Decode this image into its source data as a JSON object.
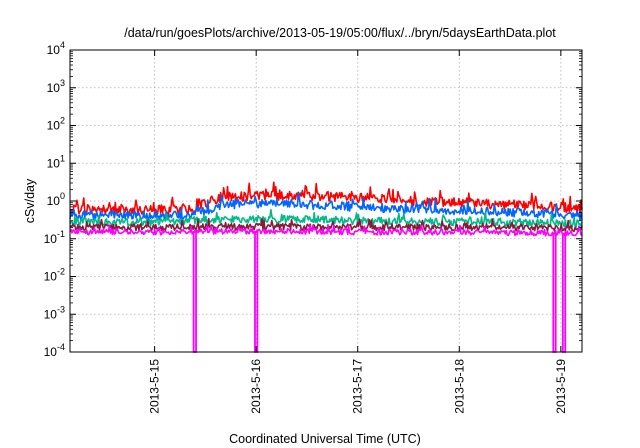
{
  "chart_data": {
    "type": "line",
    "title": "/data/run/goesPlots/archive/2013-05-19/05:00/flux/../bryn/5daysEarthData.plot",
    "xlabel": "Coordinated Universal Time (UTC)",
    "ylabel": "cSv/day",
    "yscale": "log",
    "ylim": [
      0.0001,
      10000
    ],
    "y_ticks": [
      {
        "value": 0.0001,
        "base": "10",
        "exp": "-4"
      },
      {
        "value": 0.001,
        "base": "10",
        "exp": "-3"
      },
      {
        "value": 0.01,
        "base": "10",
        "exp": "-2"
      },
      {
        "value": 0.1,
        "base": "10",
        "exp": "-1"
      },
      {
        "value": 1,
        "base": "10",
        "exp": "0"
      },
      {
        "value": 10,
        "base": "10",
        "exp": "1"
      },
      {
        "value": 100,
        "base": "10",
        "exp": "2"
      },
      {
        "value": 1000,
        "base": "10",
        "exp": "3"
      },
      {
        "value": 10000,
        "base": "10",
        "exp": "4"
      }
    ],
    "xlim": [
      "2013-05-14 04:00",
      "2013-05-19 05:00"
    ],
    "x_ticks": [
      "2013-5-15",
      "2013-5-16",
      "2013-5-17",
      "2013-5-18",
      "2013-5-19"
    ],
    "grid": true,
    "series": [
      {
        "color": "#ff0000",
        "x": [
          "2013-05-14 04:00",
          "2013-05-14 12:00",
          "2013-05-15 00:00",
          "2013-05-15 08:00",
          "2013-05-15 12:00",
          "2013-05-15 16:00",
          "2013-05-16 00:00",
          "2013-05-16 08:00",
          "2013-05-16 16:00",
          "2013-05-17 00:00",
          "2013-05-17 12:00",
          "2013-05-18 00:00",
          "2013-05-18 12:00",
          "2013-05-19 00:00",
          "2013-05-19 05:00"
        ],
        "y": [
          0.6,
          0.6,
          0.58,
          0.6,
          0.85,
          1.3,
          1.4,
          1.45,
          1.3,
          1.2,
          1.0,
          0.9,
          0.8,
          0.7,
          0.58
        ]
      },
      {
        "color": "#0066ff",
        "x": [
          "2013-05-14 04:00",
          "2013-05-14 12:00",
          "2013-05-15 00:00",
          "2013-05-15 08:00",
          "2013-05-15 12:00",
          "2013-05-15 16:00",
          "2013-05-16 00:00",
          "2013-05-16 08:00",
          "2013-05-16 16:00",
          "2013-05-17 00:00",
          "2013-05-17 12:00",
          "2013-05-18 00:00",
          "2013-05-18 12:00",
          "2013-05-19 00:00",
          "2013-05-19 05:00"
        ],
        "y": [
          0.42,
          0.42,
          0.4,
          0.42,
          0.55,
          0.8,
          0.85,
          0.88,
          0.75,
          0.7,
          0.62,
          0.55,
          0.5,
          0.45,
          0.4
        ]
      },
      {
        "color": "#00bb88",
        "x": [
          "2013-05-14 04:00",
          "2013-05-15 00:00",
          "2013-05-15 16:00",
          "2013-05-16 08:00",
          "2013-05-17 00:00",
          "2013-05-18 00:00",
          "2013-05-19 00:00",
          "2013-05-19 05:00"
        ],
        "y": [
          0.28,
          0.28,
          0.32,
          0.33,
          0.3,
          0.28,
          0.26,
          0.25
        ]
      },
      {
        "color": "#8b1a3a",
        "x": [
          "2013-05-14 04:00",
          "2013-05-15 00:00",
          "2013-05-16 00:00",
          "2013-05-17 00:00",
          "2013-05-18 00:00",
          "2013-05-19 00:00",
          "2013-05-19 05:00"
        ],
        "y": [
          0.2,
          0.2,
          0.21,
          0.2,
          0.2,
          0.19,
          0.19
        ]
      },
      {
        "color": "#ff00ff",
        "x": [
          "2013-05-14 04:00",
          "2013-05-15 00:00",
          "2013-05-16 00:00",
          "2013-05-17 00:00",
          "2013-05-18 00:00",
          "2013-05-19 00:00",
          "2013-05-19 05:00"
        ],
        "y": [
          0.15,
          0.15,
          0.16,
          0.15,
          0.15,
          0.14,
          0.14
        ]
      }
    ],
    "dropouts": [
      {
        "x": "2013-05-15 09:30",
        "y": 0.0001
      },
      {
        "x": "2013-05-16 00:00",
        "y": 0.0001
      },
      {
        "x": "2013-05-18 22:30",
        "y": 0.0001
      },
      {
        "x": "2013-05-19 00:45",
        "y": 0.0001
      }
    ]
  }
}
